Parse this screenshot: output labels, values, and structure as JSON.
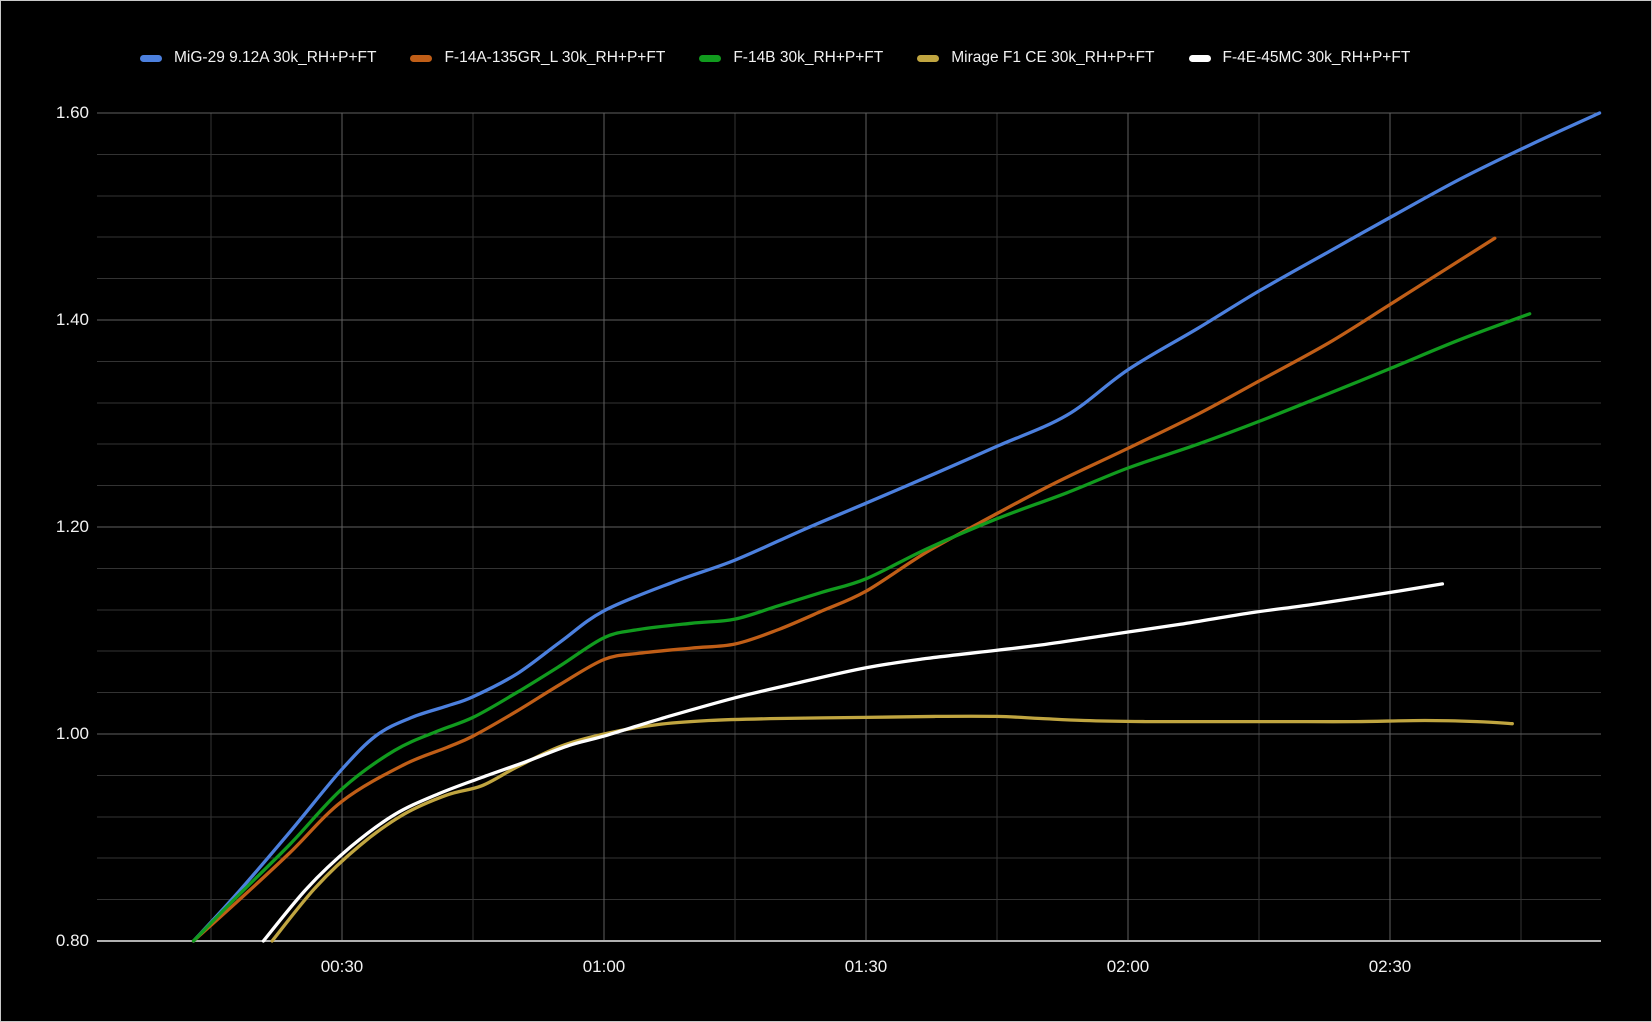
{
  "window": {
    "background_color": "#000000",
    "border_color": "#c9c9c9",
    "text_color": "#f2f2f2"
  },
  "chart_data": {
    "type": "line",
    "title": "",
    "xlabel": "",
    "ylabel": "",
    "legend_position": "top",
    "grid": {
      "visible": true,
      "minor_color": "#333333",
      "major_color": "#606060",
      "baseline_color": "#b0b0b0"
    },
    "x_axis": {
      "format": "mm:ss",
      "domain_seconds": [
        2,
        174.3
      ],
      "minor_tick_interval_s": 15,
      "minor_first_s": 15,
      "minor_last_s": 165,
      "major_ticks": [
        {
          "t": 30,
          "label": "00:30"
        },
        {
          "t": 60,
          "label": "01:00"
        },
        {
          "t": 90,
          "label": "01:30"
        },
        {
          "t": 120,
          "label": "02:00"
        },
        {
          "t": 150,
          "label": "02:30"
        }
      ]
    },
    "y_axis": {
      "range": [
        0.8,
        1.6
      ],
      "minor_tick_interval": 0.04,
      "major_ticks": [
        {
          "v": 0.8,
          "label": "0.80"
        },
        {
          "v": 1.0,
          "label": "1.00"
        },
        {
          "v": 1.2,
          "label": "1.20"
        },
        {
          "v": 1.4,
          "label": "1.40"
        },
        {
          "v": 1.6,
          "label": "1.60"
        }
      ]
    },
    "series": [
      {
        "name": "MiG-29 9.12A 30k_RH+P+FT",
        "color": "#4C80DE",
        "points": [
          [
            13,
            0.8
          ],
          [
            18,
            0.846
          ],
          [
            24,
            0.905
          ],
          [
            30,
            0.966
          ],
          [
            34,
            0.999
          ],
          [
            38,
            1.016
          ],
          [
            42,
            1.027
          ],
          [
            45,
            1.036
          ],
          [
            50,
            1.058
          ],
          [
            55,
            1.089
          ],
          [
            60,
            1.119
          ],
          [
            68,
            1.147
          ],
          [
            75,
            1.168
          ],
          [
            83,
            1.198
          ],
          [
            90,
            1.223
          ],
          [
            98,
            1.252
          ],
          [
            105,
            1.278
          ],
          [
            113,
            1.308
          ],
          [
            120,
            1.352
          ],
          [
            128,
            1.392
          ],
          [
            135,
            1.428
          ],
          [
            143,
            1.466
          ],
          [
            150,
            1.499
          ],
          [
            158,
            1.536
          ],
          [
            166,
            1.569
          ],
          [
            174,
            1.6
          ]
        ]
      },
      {
        "name": "F-14A-135GR_L 30k_RH+P+FT",
        "color": "#C05E17",
        "points": [
          [
            13,
            0.8
          ],
          [
            18,
            0.838
          ],
          [
            24,
            0.885
          ],
          [
            30,
            0.935
          ],
          [
            37,
            0.97
          ],
          [
            42,
            0.987
          ],
          [
            45,
            0.998
          ],
          [
            50,
            1.022
          ],
          [
            55,
            1.048
          ],
          [
            60,
            1.072
          ],
          [
            64,
            1.078
          ],
          [
            70,
            1.083
          ],
          [
            75,
            1.087
          ],
          [
            80,
            1.101
          ],
          [
            85,
            1.119
          ],
          [
            90,
            1.138
          ],
          [
            97,
            1.176
          ],
          [
            105,
            1.213
          ],
          [
            112,
            1.244
          ],
          [
            120,
            1.276
          ],
          [
            128,
            1.309
          ],
          [
            135,
            1.341
          ],
          [
            143,
            1.378
          ],
          [
            150,
            1.415
          ],
          [
            156,
            1.447
          ],
          [
            162,
            1.479
          ]
        ]
      },
      {
        "name": "F-14B 30k_RH+P+FT",
        "color": "#119B1E",
        "points": [
          [
            13,
            0.8
          ],
          [
            18,
            0.843
          ],
          [
            24,
            0.893
          ],
          [
            30,
            0.947
          ],
          [
            36,
            0.984
          ],
          [
            41,
            1.003
          ],
          [
            45,
            1.016
          ],
          [
            50,
            1.04
          ],
          [
            55,
            1.066
          ],
          [
            60,
            1.093
          ],
          [
            64,
            1.101
          ],
          [
            70,
            1.107
          ],
          [
            75,
            1.111
          ],
          [
            80,
            1.124
          ],
          [
            85,
            1.137
          ],
          [
            90,
            1.15
          ],
          [
            97,
            1.179
          ],
          [
            105,
            1.208
          ],
          [
            113,
            1.233
          ],
          [
            120,
            1.257
          ],
          [
            128,
            1.28
          ],
          [
            135,
            1.302
          ],
          [
            143,
            1.329
          ],
          [
            150,
            1.353
          ],
          [
            158,
            1.381
          ],
          [
            166,
            1.406
          ]
        ]
      },
      {
        "name": "Mirage F1 CE 30k_RH+P+FT",
        "color": "#C0A540",
        "points": [
          [
            22,
            0.8
          ],
          [
            27,
            0.852
          ],
          [
            32,
            0.892
          ],
          [
            37,
            0.922
          ],
          [
            42,
            0.941
          ],
          [
            46,
            0.95
          ],
          [
            50,
            0.968
          ],
          [
            55,
            0.988
          ],
          [
            60,
            1.0
          ],
          [
            66,
            1.009
          ],
          [
            72,
            1.013
          ],
          [
            80,
            1.015
          ],
          [
            90,
            1.016
          ],
          [
            98,
            1.017
          ],
          [
            105,
            1.017
          ],
          [
            110,
            1.015
          ],
          [
            115,
            1.013
          ],
          [
            122,
            1.012
          ],
          [
            130,
            1.012
          ],
          [
            138,
            1.012
          ],
          [
            146,
            1.012
          ],
          [
            154,
            1.013
          ],
          [
            160,
            1.012
          ],
          [
            164,
            1.01
          ]
        ]
      },
      {
        "name": "F-4E-45MC 30k_RH+P+FT",
        "color": "#FFFFFF",
        "points": [
          [
            21,
            0.8
          ],
          [
            26,
            0.851
          ],
          [
            31,
            0.891
          ],
          [
            36,
            0.922
          ],
          [
            41,
            0.942
          ],
          [
            46,
            0.958
          ],
          [
            51,
            0.973
          ],
          [
            56,
            0.989
          ],
          [
            60,
            0.998
          ],
          [
            67,
            1.016
          ],
          [
            75,
            1.035
          ],
          [
            82,
            1.049
          ],
          [
            90,
            1.064
          ],
          [
            97,
            1.073
          ],
          [
            103,
            1.079
          ],
          [
            110,
            1.086
          ],
          [
            118,
            1.096
          ],
          [
            126,
            1.106
          ],
          [
            134,
            1.117
          ],
          [
            141,
            1.125
          ],
          [
            148,
            1.134
          ],
          [
            156,
            1.145
          ]
        ]
      }
    ]
  }
}
